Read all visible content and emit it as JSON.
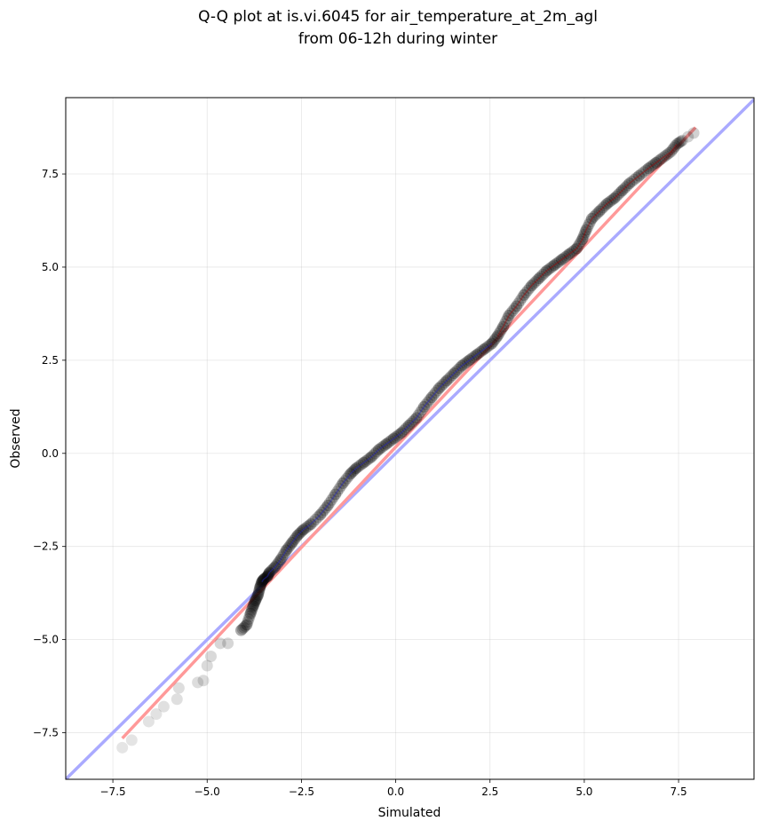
{
  "chart_data": {
    "type": "scatter",
    "title": [
      "Q-Q plot at is.vi.6045 for air_temperature_at_2m_agl",
      "from 06-12h during winter"
    ],
    "xlabel": "Simulated",
    "ylabel": "Observed",
    "xlim": [
      -8.75,
      9.5
    ],
    "ylim": [
      -8.75,
      9.55
    ],
    "xticks": [
      -7.5,
      -5.0,
      -2.5,
      0.0,
      2.5,
      5.0,
      7.5
    ],
    "xtick_labels": [
      "−7.5",
      "−5.0",
      "−2.5",
      "0.0",
      "2.5",
      "5.0",
      "7.5"
    ],
    "yticks": [
      -7.5,
      -5.0,
      -2.5,
      0.0,
      2.5,
      5.0,
      7.5
    ],
    "ytick_labels": [
      "−7.5",
      "−5.0",
      "−2.5",
      "0.0",
      "2.5",
      "5.0",
      "7.5"
    ],
    "grid": true,
    "colors": {
      "points": "#000000",
      "identity_line": "#aaaaff",
      "fit_line": "#ff9999",
      "density_overlay_low": "#2222cc",
      "density_overlay_high": "#aa0000"
    },
    "quantiles": {
      "x": [
        -7.25,
        -7.0,
        -6.55,
        -6.35,
        -6.15,
        -5.8,
        -5.75,
        -5.25,
        -5.1,
        -5.0,
        -4.9,
        -4.65,
        -4.45,
        -4.1,
        -3.95,
        -3.85,
        -3.78,
        -3.72,
        -3.65,
        -3.6,
        -3.55,
        -3.5,
        -3.4,
        -3.35,
        -3.2,
        -3.05,
        -2.9,
        -2.75,
        -2.6,
        -2.45,
        -2.25,
        -2.0,
        -1.8,
        -1.6,
        -1.4,
        -1.2,
        -1.05,
        -0.85,
        -0.65,
        -0.45,
        -0.25,
        -0.05,
        0.15,
        0.35,
        0.55,
        0.75,
        0.95,
        1.15,
        1.35,
        1.55,
        1.75,
        1.95,
        2.15,
        2.35,
        2.55,
        2.7,
        2.85,
        3.0,
        3.2,
        3.4,
        3.6,
        3.8,
        4.0,
        4.2,
        4.4,
        4.6,
        4.8,
        4.95,
        5.05,
        5.2,
        5.4,
        5.6,
        5.8,
        6.0,
        6.2,
        6.45,
        6.7,
        6.9,
        7.1,
        7.3,
        7.45,
        7.6,
        7.75,
        7.9
      ],
      "y": [
        -7.9,
        -7.7,
        -7.2,
        -7.0,
        -6.8,
        -6.6,
        -6.3,
        -6.15,
        -6.1,
        -5.7,
        -5.45,
        -5.1,
        -5.1,
        -4.75,
        -4.6,
        -4.3,
        -4.1,
        -3.95,
        -3.8,
        -3.6,
        -3.45,
        -3.38,
        -3.3,
        -3.2,
        -3.05,
        -2.85,
        -2.6,
        -2.4,
        -2.2,
        -2.05,
        -1.9,
        -1.65,
        -1.4,
        -1.1,
        -0.8,
        -0.55,
        -0.4,
        -0.25,
        -0.1,
        0.1,
        0.25,
        0.4,
        0.55,
        0.75,
        0.95,
        1.25,
        1.5,
        1.75,
        1.95,
        2.15,
        2.35,
        2.5,
        2.65,
        2.8,
        2.95,
        3.15,
        3.4,
        3.7,
        3.95,
        4.25,
        4.5,
        4.7,
        4.9,
        5.05,
        5.2,
        5.35,
        5.5,
        5.75,
        6.0,
        6.3,
        6.5,
        6.7,
        6.85,
        7.05,
        7.25,
        7.45,
        7.65,
        7.8,
        7.95,
        8.1,
        8.3,
        8.4,
        8.5,
        8.6
      ]
    },
    "identity_line": {
      "x": [
        -8.75,
        9.5
      ],
      "y": [
        -8.75,
        9.5
      ]
    },
    "fit_line": {
      "x": [
        -7.25,
        7.95
      ],
      "y": [
        -7.65,
        8.75
      ]
    }
  }
}
